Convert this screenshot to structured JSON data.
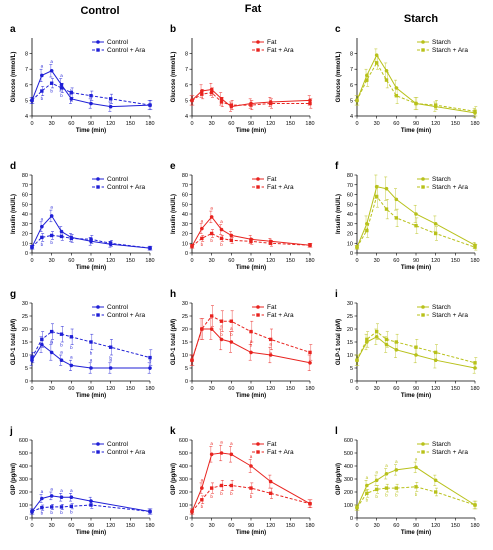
{
  "column_titles": [
    "Control",
    "Fat",
    "Starch"
  ],
  "colors": {
    "Control": "#1f1fd6",
    "Fat": "#e8231f",
    "Starch": "#b8c11a"
  },
  "x_ticks": [
    0,
    30,
    60,
    90,
    120,
    150,
    180
  ],
  "x_label": "Time (min)",
  "chart_data": [
    {
      "panel": "a",
      "type": "line",
      "group": "Control",
      "ylabel": "Glucose (mmol/L)",
      "ylim": [
        4,
        9
      ],
      "yticks": [
        4,
        5,
        6,
        7,
        8
      ],
      "x": [
        0,
        15,
        30,
        45,
        60,
        90,
        120,
        180
      ],
      "series": [
        {
          "name": "Control",
          "dashed": false,
          "values": [
            5.0,
            6.6,
            6.9,
            6.0,
            5.1,
            4.8,
            4.6,
            4.7
          ],
          "errors": [
            0.2,
            0.4,
            0.4,
            0.4,
            0.3,
            0.3,
            0.3,
            0.3
          ],
          "labels": [
            "",
            "a",
            "a",
            "a",
            "b",
            "b",
            "b",
            ""
          ]
        },
        {
          "name": "Control + Ara",
          "dashed": true,
          "values": [
            5.0,
            5.6,
            6.1,
            5.8,
            5.5,
            5.3,
            5.1,
            4.7
          ],
          "errors": [
            0.2,
            0.3,
            0.3,
            0.3,
            0.3,
            0.3,
            0.3,
            0.3
          ],
          "labels": [
            "",
            "b",
            "b",
            "b",
            "a",
            "a",
            "a",
            ""
          ]
        }
      ]
    },
    {
      "panel": "b",
      "type": "line",
      "group": "Fat",
      "ylabel": "Glucose (mmol/L)",
      "ylim": [
        4,
        9
      ],
      "yticks": [
        4,
        5,
        6,
        7,
        8
      ],
      "x": [
        0,
        15,
        30,
        45,
        60,
        90,
        120,
        180
      ],
      "series": [
        {
          "name": "Fat",
          "dashed": false,
          "values": [
            5.0,
            5.6,
            5.7,
            5.1,
            4.6,
            4.8,
            4.9,
            5.0
          ],
          "errors": [
            0.3,
            0.4,
            0.4,
            0.4,
            0.3,
            0.3,
            0.3,
            0.3
          ],
          "labels": []
        },
        {
          "name": "Fat + Ara",
          "dashed": true,
          "values": [
            5.0,
            5.4,
            5.5,
            4.9,
            4.7,
            4.7,
            4.8,
            4.8
          ],
          "errors": [
            0.3,
            0.3,
            0.3,
            0.3,
            0.3,
            0.3,
            0.3,
            0.3
          ],
          "labels": []
        }
      ]
    },
    {
      "panel": "c",
      "type": "line",
      "group": "Starch",
      "ylabel": "Glucose (mmol/L)",
      "ylim": [
        4,
        9
      ],
      "yticks": [
        4,
        5,
        6,
        7,
        8
      ],
      "x": [
        0,
        15,
        30,
        45,
        60,
        90,
        120,
        180
      ],
      "series": [
        {
          "name": "Starch",
          "dashed": false,
          "values": [
            5.0,
            6.6,
            7.9,
            6.9,
            5.8,
            4.8,
            4.6,
            4.2
          ],
          "errors": [
            0.3,
            0.4,
            0.4,
            0.5,
            0.5,
            0.4,
            0.3,
            0.3
          ],
          "labels": []
        },
        {
          "name": "Starch + Ara",
          "dashed": true,
          "values": [
            5.0,
            6.3,
            7.4,
            6.3,
            5.3,
            4.8,
            4.7,
            4.3
          ],
          "errors": [
            0.3,
            0.4,
            0.4,
            0.5,
            0.5,
            0.4,
            0.3,
            0.3
          ],
          "labels": []
        }
      ]
    },
    {
      "panel": "d",
      "type": "line",
      "group": "Control",
      "ylabel": "Insulin (mU/L)",
      "ylim": [
        0,
        80
      ],
      "yticks": [
        0,
        10,
        20,
        30,
        40,
        50,
        60,
        70,
        80
      ],
      "x": [
        0,
        15,
        30,
        45,
        60,
        90,
        120,
        180
      ],
      "series": [
        {
          "name": "Control",
          "dashed": false,
          "values": [
            6,
            27,
            38,
            22,
            16,
            12,
            9,
            5
          ],
          "errors": [
            2,
            5,
            6,
            5,
            4,
            4,
            3,
            2
          ],
          "labels": [
            "",
            "a",
            "a",
            "",
            "",
            "",
            "",
            ""
          ]
        },
        {
          "name": "Control + Ara",
          "dashed": true,
          "values": [
            6,
            16,
            18,
            17,
            15,
            14,
            10,
            5
          ],
          "errors": [
            2,
            4,
            4,
            4,
            4,
            4,
            3,
            2
          ],
          "labels": [
            "",
            "b",
            "b",
            "",
            "",
            "",
            "",
            ""
          ]
        }
      ]
    },
    {
      "panel": "e",
      "type": "line",
      "group": "Fat",
      "ylabel": "Insulin (mU/L)",
      "ylim": [
        0,
        80
      ],
      "yticks": [
        0,
        10,
        20,
        30,
        40,
        50,
        60,
        70,
        80
      ],
      "x": [
        0,
        15,
        30,
        45,
        60,
        90,
        120,
        180
      ],
      "series": [
        {
          "name": "Fat",
          "dashed": false,
          "values": [
            7,
            25,
            37,
            24,
            18,
            14,
            12,
            8
          ],
          "errors": [
            2,
            5,
            6,
            5,
            4,
            4,
            3,
            2
          ],
          "labels": [
            "",
            "a",
            "a",
            "a",
            "",
            "",
            "",
            ""
          ]
        },
        {
          "name": "Fat + Ara",
          "dashed": true,
          "values": [
            7,
            15,
            20,
            15,
            13,
            12,
            10,
            8
          ],
          "errors": [
            2,
            3,
            4,
            3,
            3,
            3,
            3,
            2
          ],
          "labels": [
            "",
            "b",
            "b",
            "b",
            "",
            "",
            "",
            ""
          ]
        }
      ]
    },
    {
      "panel": "f",
      "type": "line",
      "group": "Starch",
      "ylabel": "Insulin (mU/L)",
      "ylim": [
        0,
        80
      ],
      "yticks": [
        0,
        10,
        20,
        30,
        40,
        50,
        60,
        70,
        80
      ],
      "x": [
        0,
        15,
        30,
        45,
        60,
        90,
        120,
        180
      ],
      "series": [
        {
          "name": "Starch",
          "dashed": false,
          "values": [
            6,
            30,
            68,
            66,
            55,
            40,
            30,
            8
          ],
          "errors": [
            2,
            8,
            12,
            12,
            11,
            9,
            8,
            3
          ],
          "labels": []
        },
        {
          "name": "Starch + Ara",
          "dashed": true,
          "values": [
            6,
            23,
            58,
            45,
            36,
            28,
            20,
            6
          ],
          "errors": [
            2,
            7,
            11,
            10,
            9,
            8,
            7,
            3
          ],
          "labels": []
        }
      ]
    },
    {
      "panel": "g",
      "type": "line",
      "group": "Control",
      "ylabel": "GLP-1 total (pM)",
      "ylim": [
        0,
        30
      ],
      "yticks": [
        0,
        5,
        10,
        15,
        20,
        25,
        30
      ],
      "x": [
        0,
        15,
        30,
        45,
        60,
        90,
        120,
        180
      ],
      "series": [
        {
          "name": "Control",
          "dashed": false,
          "values": [
            8,
            14,
            11,
            8,
            6,
            5,
            5,
            5
          ],
          "errors": [
            2,
            3,
            3,
            2,
            2,
            2,
            2,
            2
          ],
          "labels": [
            "",
            "",
            "a",
            "a",
            "a",
            "a",
            "a",
            "a"
          ]
        },
        {
          "name": "Control + Ara",
          "dashed": true,
          "values": [
            9,
            16,
            19,
            18,
            17,
            15,
            13,
            9
          ],
          "errors": [
            2,
            3,
            3,
            3,
            3,
            3,
            3,
            3
          ],
          "labels": [
            "",
            "",
            "b",
            "b",
            "b",
            "b",
            "b",
            "b"
          ]
        }
      ]
    },
    {
      "panel": "h",
      "type": "line",
      "group": "Fat",
      "ylabel": "GLP-1 total (pM)",
      "ylim": [
        0,
        30
      ],
      "yticks": [
        0,
        5,
        10,
        15,
        20,
        25,
        30
      ],
      "x": [
        0,
        15,
        30,
        45,
        60,
        90,
        120,
        180
      ],
      "series": [
        {
          "name": "Fat",
          "dashed": false,
          "values": [
            8,
            20,
            20,
            16,
            15,
            11,
            10,
            7
          ],
          "errors": [
            2,
            4,
            4,
            4,
            4,
            3,
            3,
            3
          ],
          "labels": [
            "",
            "",
            "a",
            "a",
            "a",
            "a",
            "a",
            "a"
          ]
        },
        {
          "name": "Fat + Ara",
          "dashed": true,
          "values": [
            8,
            20,
            25,
            23,
            23,
            19,
            16,
            11
          ],
          "errors": [
            2,
            4,
            4,
            4,
            4,
            4,
            4,
            3
          ],
          "labels": [
            "",
            "",
            "b",
            "b",
            "b",
            "b",
            "b",
            "b"
          ]
        }
      ]
    },
    {
      "panel": "i",
      "type": "line",
      "group": "Starch",
      "ylabel": "GLP-1 total (pM)",
      "ylim": [
        0,
        30
      ],
      "yticks": [
        0,
        5,
        10,
        15,
        20,
        25,
        30
      ],
      "x": [
        0,
        15,
        30,
        45,
        60,
        90,
        120,
        180
      ],
      "series": [
        {
          "name": "Starch",
          "dashed": false,
          "values": [
            8,
            15,
            17,
            14,
            12,
            10,
            8,
            5
          ],
          "errors": [
            2,
            3,
            3,
            3,
            3,
            3,
            3,
            2
          ],
          "labels": []
        },
        {
          "name": "Starch + Ara",
          "dashed": true,
          "values": [
            8,
            16,
            19,
            16,
            15,
            13,
            11,
            7
          ],
          "errors": [
            2,
            3,
            3,
            3,
            3,
            3,
            3,
            2
          ],
          "labels": []
        }
      ]
    },
    {
      "panel": "j",
      "type": "line",
      "group": "Control",
      "ylabel": "GIP (pg/ml)",
      "ylim": [
        0,
        600
      ],
      "yticks": [
        0,
        100,
        200,
        300,
        400,
        500,
        600
      ],
      "x": [
        0,
        15,
        30,
        45,
        60,
        90,
        180
      ],
      "series": [
        {
          "name": "Control",
          "dashed": false,
          "values": [
            50,
            150,
            170,
            160,
            160,
            130,
            50
          ],
          "errors": [
            20,
            30,
            30,
            30,
            30,
            30,
            20
          ],
          "labels": [
            "",
            "a",
            "a",
            "a",
            "a",
            "",
            ""
          ]
        },
        {
          "name": "Control + Ara",
          "dashed": true,
          "values": [
            50,
            80,
            85,
            85,
            90,
            100,
            50
          ],
          "errors": [
            20,
            20,
            20,
            20,
            20,
            25,
            20
          ],
          "labels": [
            "",
            "b",
            "b",
            "b",
            "b",
            "",
            ""
          ]
        }
      ]
    },
    {
      "panel": "k",
      "type": "line",
      "group": "Fat",
      "ylabel": "GIP (pg/ml)",
      "ylim": [
        0,
        600
      ],
      "yticks": [
        0,
        100,
        200,
        300,
        400,
        500,
        600
      ],
      "x": [
        0,
        15,
        30,
        45,
        60,
        90,
        120,
        180
      ],
      "series": [
        {
          "name": "Fat",
          "dashed": false,
          "values": [
            50,
            230,
            490,
            500,
            490,
            400,
            280,
            110
          ],
          "errors": [
            20,
            40,
            60,
            60,
            60,
            50,
            50,
            30
          ],
          "labels": [
            "",
            "a",
            "a",
            "a",
            "a",
            "a",
            "",
            ""
          ]
        },
        {
          "name": "Fat + Ara",
          "dashed": true,
          "values": [
            50,
            140,
            230,
            250,
            250,
            230,
            190,
            110
          ],
          "errors": [
            20,
            30,
            40,
            40,
            40,
            40,
            40,
            30
          ],
          "labels": [
            "",
            "b",
            "b",
            "b",
            "b",
            "b",
            "",
            ""
          ]
        }
      ]
    },
    {
      "panel": "l",
      "type": "line",
      "group": "Starch",
      "ylabel": "GIP (pg/ml)",
      "ylim": [
        0,
        600
      ],
      "yticks": [
        0,
        100,
        200,
        300,
        400,
        500,
        600
      ],
      "x": [
        0,
        15,
        30,
        45,
        60,
        90,
        120,
        180
      ],
      "series": [
        {
          "name": "Starch",
          "dashed": false,
          "values": [
            80,
            250,
            290,
            340,
            370,
            390,
            290,
            100
          ],
          "errors": [
            20,
            40,
            40,
            40,
            40,
            40,
            40,
            30
          ],
          "labels": [
            "",
            "a",
            "a",
            "a",
            "a",
            "a",
            "",
            ""
          ]
        },
        {
          "name": "Starch + Ara",
          "dashed": true,
          "values": [
            80,
            190,
            220,
            230,
            230,
            240,
            200,
            100
          ],
          "errors": [
            20,
            30,
            30,
            30,
            30,
            35,
            30,
            30
          ],
          "labels": [
            "",
            "b",
            "b",
            "b",
            "b",
            "b",
            "",
            ""
          ]
        }
      ]
    }
  ]
}
